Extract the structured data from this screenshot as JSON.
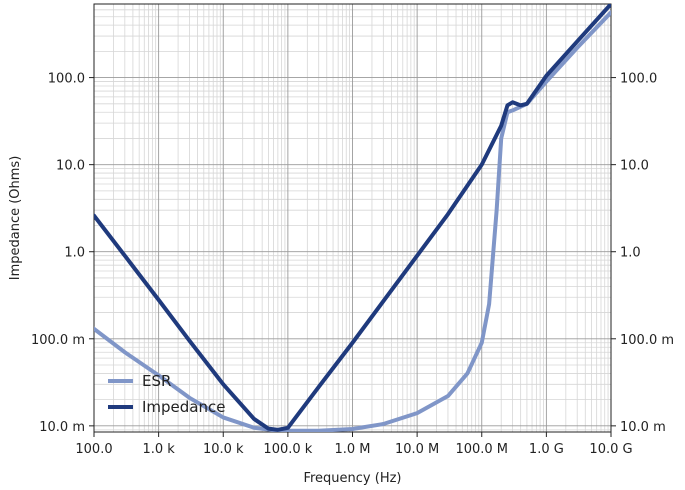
{
  "chart_data": {
    "type": "line",
    "title": "",
    "xlabel": "Frequency (Hz)",
    "ylabel": "Impedance (Ohms)",
    "x_scale": "log",
    "y_scale": "log",
    "xlim": [
      100,
      10000000000
    ],
    "ylim": [
      0.0085,
      700
    ],
    "grid": true,
    "legend_position": "bottom-left",
    "x_ticks": [
      {
        "value": 100,
        "label": "100.0"
      },
      {
        "value": 1000,
        "label": "1.0 k"
      },
      {
        "value": 10000,
        "label": "10.0 k"
      },
      {
        "value": 100000,
        "label": "100.0 k"
      },
      {
        "value": 1000000,
        "label": "1.0 M"
      },
      {
        "value": 10000000,
        "label": "10.0 M"
      },
      {
        "value": 100000000,
        "label": "100.0 M"
      },
      {
        "value": 1000000000,
        "label": "1.0 G"
      },
      {
        "value": 10000000000,
        "label": "10.0 G"
      }
    ],
    "y_ticks": [
      {
        "value": 0.01,
        "label": "10.0 m"
      },
      {
        "value": 0.1,
        "label": "100.0 m"
      },
      {
        "value": 1,
        "label": "1.0"
      },
      {
        "value": 10,
        "label": "10.0"
      },
      {
        "value": 100,
        "label": "100.0"
      }
    ],
    "series": [
      {
        "name": "ESR",
        "color": "#8096c8",
        "x": [
          100,
          300,
          1000,
          3000,
          10000,
          30000,
          70000,
          100000,
          300000,
          1000000,
          3000000,
          10000000,
          30000000,
          60000000,
          100000000,
          130000000,
          170000000,
          200000000,
          250000000,
          300000000,
          500000000,
          1000000000,
          3000000000,
          10000000000
        ],
        "y": [
          0.13,
          0.07,
          0.038,
          0.021,
          0.0125,
          0.0095,
          0.0088,
          0.0088,
          0.0088,
          0.0092,
          0.0105,
          0.014,
          0.022,
          0.04,
          0.09,
          0.25,
          3.0,
          20,
          40,
          42,
          50,
          90,
          220,
          560
        ]
      },
      {
        "name": "Impedance",
        "color": "#1f3a7d",
        "x": [
          100,
          300,
          1000,
          3000,
          10000,
          30000,
          50000,
          70000,
          100000,
          300000,
          1000000,
          3000000,
          10000000,
          30000000,
          100000000,
          200000000,
          250000000,
          300000000,
          400000000,
          500000000,
          1000000000,
          3000000000,
          10000000000
        ],
        "y": [
          2.6,
          0.9,
          0.28,
          0.095,
          0.03,
          0.012,
          0.0093,
          0.009,
          0.0095,
          0.028,
          0.09,
          0.27,
          0.9,
          2.7,
          10,
          28,
          48,
          52,
          48,
          50,
          105,
          260,
          700
        ]
      }
    ]
  }
}
